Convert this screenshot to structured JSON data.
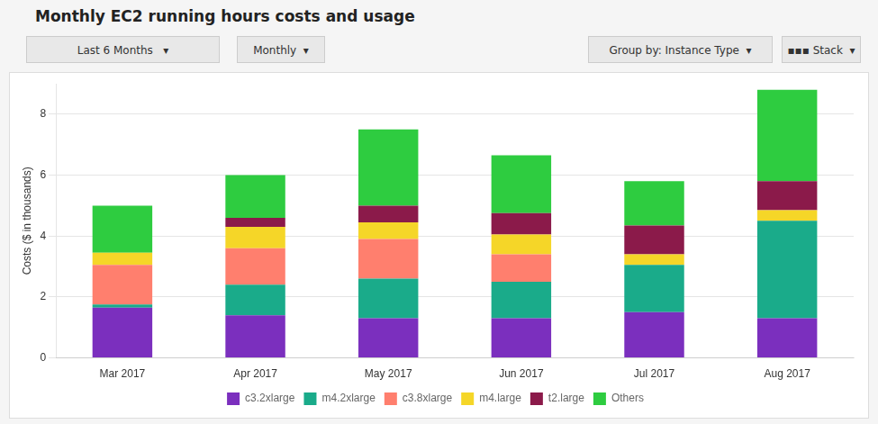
{
  "chart_data": {
    "type": "bar",
    "title": "Monthly EC2 running hours costs and usage",
    "ylabel": "Costs ($ in thousands)",
    "categories": [
      "Mar 2017",
      "Apr 2017",
      "May 2017",
      "Jun 2017",
      "Jul 2017",
      "Aug 2017"
    ],
    "series": [
      {
        "name": "c3.2xlarge",
        "color": "#7b2fbe",
        "values": [
          1.65,
          1.4,
          1.3,
          1.3,
          1.5,
          1.3
        ]
      },
      {
        "name": "m4.2xlarge",
        "color": "#1aab8a",
        "values": [
          0.1,
          1.0,
          1.3,
          1.2,
          1.55,
          3.2
        ]
      },
      {
        "name": "c3.8xlarge",
        "color": "#ff7f6e",
        "values": [
          1.3,
          1.2,
          1.3,
          0.9,
          0.0,
          0.0
        ]
      },
      {
        "name": "m4.large",
        "color": "#f5d628",
        "values": [
          0.4,
          0.7,
          0.55,
          0.65,
          0.35,
          0.35
        ]
      },
      {
        "name": "t2.large",
        "color": "#8b1a4a",
        "values": [
          0.0,
          0.3,
          0.55,
          0.7,
          0.95,
          0.95
        ]
      },
      {
        "name": "Others",
        "color": "#2ecc40",
        "values": [
          1.55,
          1.4,
          2.5,
          1.9,
          1.45,
          3.0
        ]
      }
    ],
    "stacked": true,
    "ylim": [
      0,
      9
    ],
    "yticks": [
      0,
      2,
      4,
      6,
      8
    ],
    "grid": true,
    "legend": "bottom",
    "annotations": [
      "Last 6 Months   ▾",
      "Monthly  ▾",
      "Group by: Instance Type  ▾",
      "▪▪▪ Stack  ▾"
    ]
  }
}
